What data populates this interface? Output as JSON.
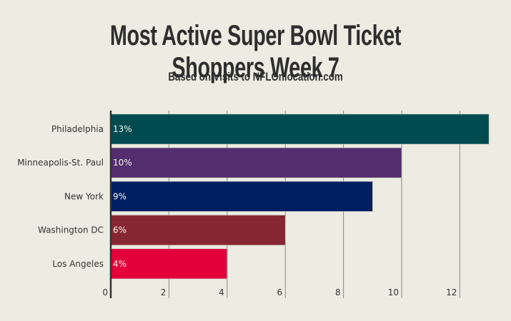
{
  "chart_data": {
    "type": "bar",
    "orientation": "horizontal",
    "title": "Most Active Super Bowl Ticket Shoppers Week 7",
    "subtitle": "Based on Visits to NFLOnlocation.com",
    "xlabel": "",
    "ylabel": "",
    "categories": [
      "Philadelphia",
      "Minneapolis-St. Paul",
      "New York",
      "Washington DC",
      "Los Angeles"
    ],
    "values": [
      13,
      10,
      9,
      6,
      4
    ],
    "data_labels": [
      "13%",
      "10%",
      "9%",
      "6%",
      "4%"
    ],
    "colors": [
      "#004b50",
      "#532d6d",
      "#001e62",
      "#862633",
      "#e4003b"
    ],
    "xlim": [
      0,
      13.2
    ],
    "xticks": [
      0,
      2,
      4,
      6,
      8,
      10,
      12
    ],
    "grid": "vertical",
    "legend": "none"
  },
  "style": {
    "background": "#edece2",
    "text_color": "#2e2e2e",
    "grid_color": "#8a8a84",
    "axis_color": "#333333"
  }
}
